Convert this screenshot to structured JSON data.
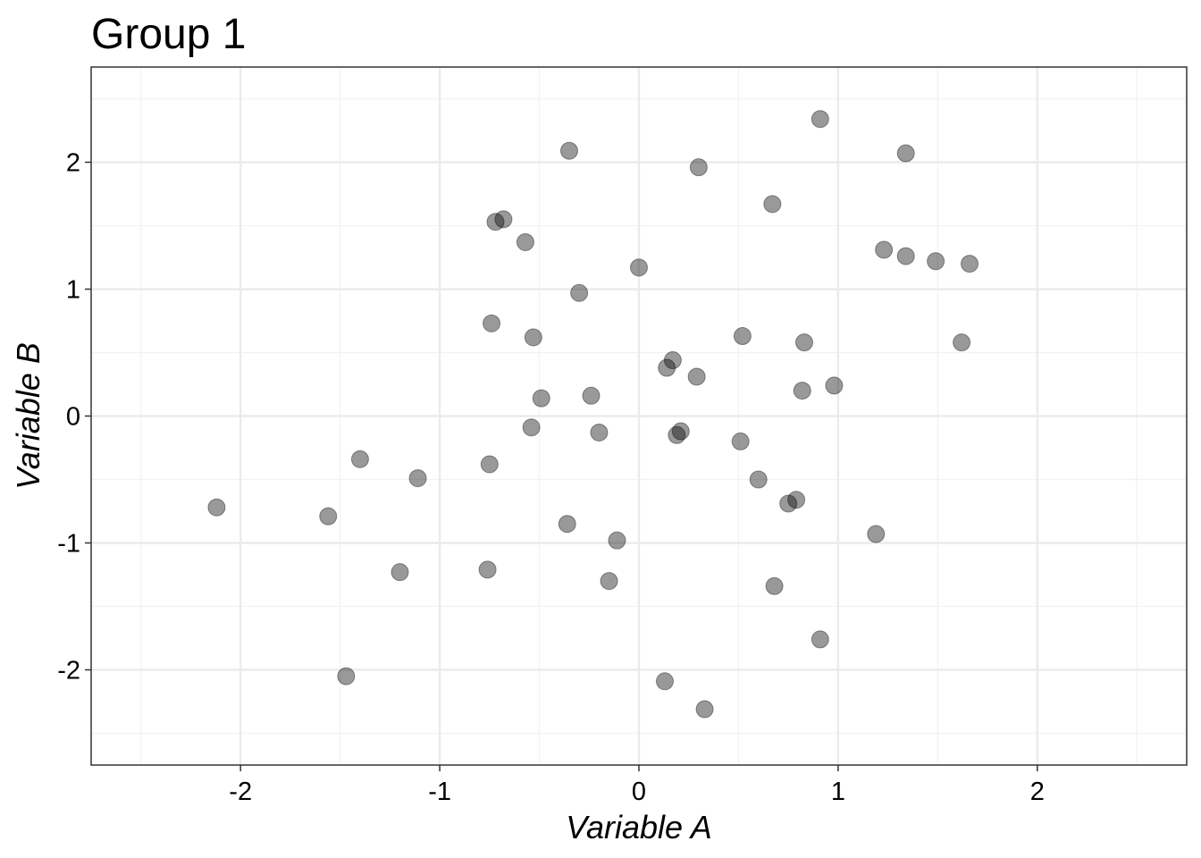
{
  "chart_data": {
    "type": "scatter",
    "title": "Group 1",
    "xlabel": "Variable A",
    "ylabel": "Variable B",
    "xlim": [
      -2.75,
      2.75
    ],
    "ylim": [
      -2.75,
      2.75
    ],
    "x_ticks": [
      -2,
      -1,
      0,
      1,
      2
    ],
    "y_ticks": [
      -2,
      -1,
      0,
      1,
      2
    ],
    "x_tick_labels": [
      "-2",
      "-1",
      "0",
      "1",
      "2"
    ],
    "y_tick_labels": [
      "-2",
      "-1",
      "0",
      "1",
      "2"
    ],
    "grid": true,
    "theme": "bw",
    "colors": {
      "point_fill": "#000000",
      "point_opacity": 0.4,
      "grid_major": "#ebebeb",
      "grid_minor": "#f2f2f2",
      "panel_border": "#333333"
    },
    "series": [
      {
        "name": "Group 1",
        "points": [
          {
            "x": 0.91,
            "y": 2.34
          },
          {
            "x": -0.35,
            "y": 2.09
          },
          {
            "x": 1.34,
            "y": 2.07
          },
          {
            "x": 0.3,
            "y": 1.96
          },
          {
            "x": 0.67,
            "y": 1.67
          },
          {
            "x": -0.68,
            "y": 1.55
          },
          {
            "x": -0.72,
            "y": 1.53
          },
          {
            "x": -0.57,
            "y": 1.37
          },
          {
            "x": 1.23,
            "y": 1.31
          },
          {
            "x": 1.34,
            "y": 1.26
          },
          {
            "x": 1.49,
            "y": 1.22
          },
          {
            "x": 1.66,
            "y": 1.2
          },
          {
            "x": 0.0,
            "y": 1.17
          },
          {
            "x": -0.3,
            "y": 0.97
          },
          {
            "x": -0.74,
            "y": 0.73
          },
          {
            "x": -0.53,
            "y": 0.62
          },
          {
            "x": 0.52,
            "y": 0.63
          },
          {
            "x": 0.83,
            "y": 0.58
          },
          {
            "x": 1.62,
            "y": 0.58
          },
          {
            "x": 0.17,
            "y": 0.44
          },
          {
            "x": 0.14,
            "y": 0.38
          },
          {
            "x": 0.29,
            "y": 0.31
          },
          {
            "x": 0.98,
            "y": 0.24
          },
          {
            "x": 0.82,
            "y": 0.2
          },
          {
            "x": -0.24,
            "y": 0.16
          },
          {
            "x": -0.49,
            "y": 0.14
          },
          {
            "x": -0.54,
            "y": -0.09
          },
          {
            "x": -0.2,
            "y": -0.13
          },
          {
            "x": 0.21,
            "y": -0.12
          },
          {
            "x": 0.19,
            "y": -0.15
          },
          {
            "x": 0.51,
            "y": -0.2
          },
          {
            "x": -1.4,
            "y": -0.34
          },
          {
            "x": -0.75,
            "y": -0.38
          },
          {
            "x": -1.11,
            "y": -0.49
          },
          {
            "x": 0.6,
            "y": -0.5
          },
          {
            "x": 0.79,
            "y": -0.66
          },
          {
            "x": 0.75,
            "y": -0.69
          },
          {
            "x": -2.12,
            "y": -0.72
          },
          {
            "x": -1.56,
            "y": -0.79
          },
          {
            "x": -0.36,
            "y": -0.85
          },
          {
            "x": 1.19,
            "y": -0.93
          },
          {
            "x": -0.11,
            "y": -0.98
          },
          {
            "x": -0.76,
            "y": -1.21
          },
          {
            "x": -1.2,
            "y": -1.23
          },
          {
            "x": -0.15,
            "y": -1.3
          },
          {
            "x": 0.68,
            "y": -1.34
          },
          {
            "x": 0.91,
            "y": -1.76
          },
          {
            "x": -1.47,
            "y": -2.05
          },
          {
            "x": 0.13,
            "y": -2.09
          },
          {
            "x": 0.33,
            "y": -2.31
          }
        ]
      }
    ]
  }
}
